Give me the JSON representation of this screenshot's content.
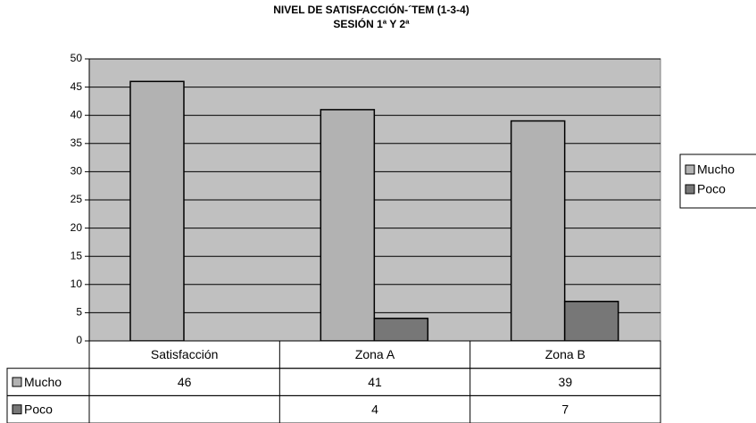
{
  "chart_data": {
    "type": "bar",
    "title": "NIVEL DE SATISFACCIÓN-´TEM (1-3-4)",
    "subtitle": "SESIÓN 1ª Y 2ª",
    "categories": [
      "Satisfacción",
      "Zona A",
      "Zona B"
    ],
    "series": [
      {
        "name": "Mucho",
        "color": "#b2b2b2",
        "values": [
          46,
          41,
          39
        ]
      },
      {
        "name": "Poco",
        "color": "#777777",
        "values": [
          null,
          4,
          7
        ]
      }
    ],
    "ylim": [
      0,
      50
    ],
    "yticks": [
      0,
      5,
      10,
      15,
      20,
      25,
      30,
      35,
      40,
      45,
      50
    ],
    "grid": true,
    "legend": "right",
    "data_table": true
  }
}
